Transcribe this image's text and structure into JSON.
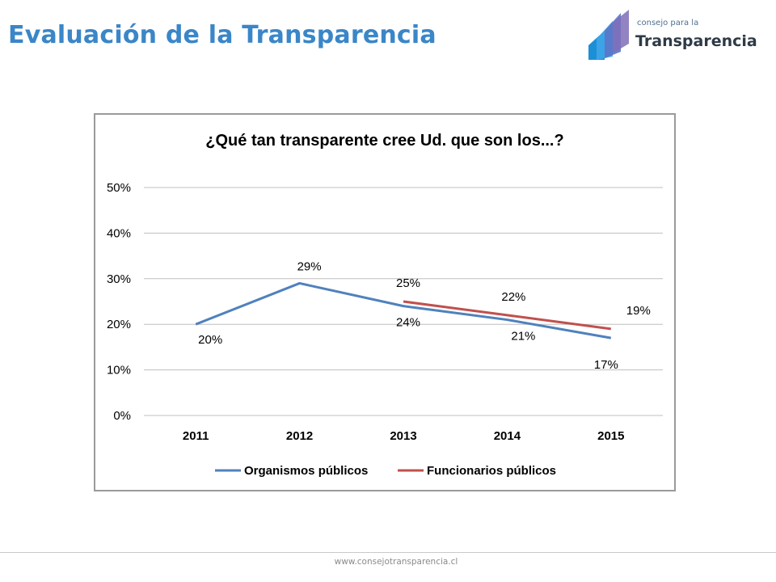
{
  "slide": {
    "title": "Evaluación de la Transparencia",
    "footer_url": "www.consejotransparencia.cl"
  },
  "logo": {
    "line1": "consejo para la",
    "line2": "Transparencia"
  },
  "colors": {
    "title": "#3a86c8",
    "series_organismos": "#4f81bd",
    "series_funcionarios": "#c0504d",
    "grid": "#bfbfbf"
  },
  "chart_data": {
    "type": "line",
    "title": "¿Qué tan transparente cree Ud. que son los...?",
    "x": [
      "2011",
      "2012",
      "2013",
      "2014",
      "2015"
    ],
    "y_ticks": [
      "0%",
      "10%",
      "20%",
      "30%",
      "40%",
      "50%"
    ],
    "ylim": [
      0,
      50
    ],
    "grid": true,
    "legend_position": "bottom",
    "series": [
      {
        "name": "Organismos públicos",
        "values": [
          20,
          29,
          24,
          21,
          17
        ],
        "labels": [
          "20%",
          "29%",
          "24%",
          "21%",
          "17%"
        ]
      },
      {
        "name": "Funcionarios públicos",
        "values": [
          null,
          null,
          25,
          22,
          19
        ],
        "labels": [
          "",
          "",
          "25%",
          "22%",
          "19%"
        ]
      }
    ]
  }
}
